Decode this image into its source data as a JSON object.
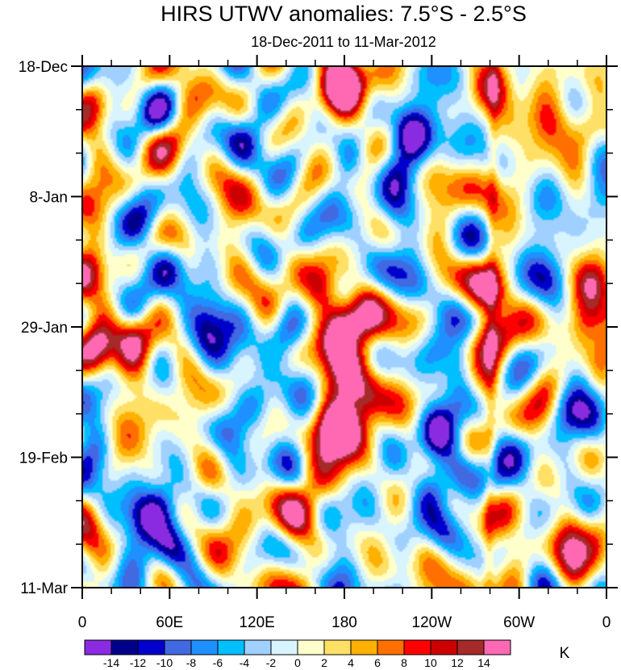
{
  "chart_data": {
    "type": "heatmap",
    "title": "HIRS UTWV anomalies: 7.5°S - 2.5°S",
    "subtitle": "18-Dec-2011 to 11-Mar-2012",
    "xlabel": "",
    "ylabel": "",
    "x_ticks": [
      "0",
      "60E",
      "120E",
      "180",
      "120W",
      "60W",
      "0"
    ],
    "x_tick_longitudes": [
      0,
      60,
      120,
      180,
      240,
      300,
      360
    ],
    "y_ticks": [
      "18-Dec",
      "8-Jan",
      "29-Jan",
      "19-Feb",
      "11-Mar"
    ],
    "y_tick_days": [
      0,
      21,
      42,
      63,
      84
    ],
    "xlim": [
      0,
      360
    ],
    "ylim_days": [
      0,
      84
    ],
    "colorbar": {
      "unit": "K",
      "levels": [
        -14,
        -12,
        -10,
        -8,
        -6,
        -4,
        -2,
        0,
        2,
        4,
        6,
        8,
        10,
        12,
        14
      ],
      "labels": [
        "-14",
        "-12",
        "-10",
        "-8",
        "-6",
        "-4",
        "-2",
        "0",
        "2",
        "4",
        "6",
        "8",
        "10",
        "12",
        "14"
      ],
      "colors": [
        "#8a2be2",
        "#00008b",
        "#0000cd",
        "#4169e1",
        "#1e90ff",
        "#00bfff",
        "#a0d0ff",
        "#d8f4ff",
        "#ffffcc",
        "#ffe066",
        "#ffb000",
        "#ff7000",
        "#ff0000",
        "#cd0000",
        "#a52a2a",
        "#ff69b4"
      ]
    },
    "features": [
      {
        "lon": 176,
        "day": 2,
        "value": 16
      },
      {
        "lon": 182,
        "day": 4,
        "value": 12
      },
      {
        "lon": 6,
        "day": 15,
        "value": 9
      },
      {
        "lon": 4,
        "day": 33,
        "value": 9
      },
      {
        "lon": 10,
        "day": 46,
        "value": 11
      },
      {
        "lon": 36,
        "day": 44,
        "value": 12
      },
      {
        "lon": 180,
        "day": 41,
        "value": 16
      },
      {
        "lon": 165,
        "day": 36,
        "value": 13
      },
      {
        "lon": 195,
        "day": 40,
        "value": 12
      },
      {
        "lon": 172,
        "day": 45,
        "value": 10
      },
      {
        "lon": 195,
        "day": 53,
        "value": 13
      },
      {
        "lon": 170,
        "day": 58,
        "value": 13
      },
      {
        "lon": 180,
        "day": 59,
        "value": 15
      },
      {
        "lon": 186,
        "day": 49,
        "value": 9
      },
      {
        "lon": 281,
        "day": 4,
        "value": 10
      },
      {
        "lon": 280,
        "day": 20,
        "value": 6
      },
      {
        "lon": 279,
        "day": 36,
        "value": 11
      },
      {
        "lon": 281,
        "day": 44,
        "value": 14
      },
      {
        "lon": 276,
        "day": 52,
        "value": 7
      },
      {
        "lon": 336,
        "day": 74,
        "value": 14
      },
      {
        "lon": 330,
        "day": 78,
        "value": 9
      },
      {
        "lon": 345,
        "day": 42,
        "value": 10
      },
      {
        "lon": 355,
        "day": 40,
        "value": 8
      },
      {
        "lon": 350,
        "day": 35,
        "value": 8
      },
      {
        "lon": 8,
        "day": 5,
        "value": 9
      },
      {
        "lon": 10,
        "day": 45,
        "value": 8
      },
      {
        "lon": 60,
        "day": 20,
        "value": 6
      },
      {
        "lon": 70,
        "day": 28,
        "value": 5
      },
      {
        "lon": 90,
        "day": 74,
        "value": 7
      },
      {
        "lon": 160,
        "day": 68,
        "value": 8
      },
      {
        "lon": 150,
        "day": 72,
        "value": 7
      },
      {
        "lon": 320,
        "day": 9,
        "value": 6
      },
      {
        "lon": 348,
        "day": 10,
        "value": 6
      },
      {
        "lon": 240,
        "day": 82,
        "value": 5
      },
      {
        "lon": 300,
        "day": 80,
        "value": 5
      },
      {
        "lon": 90,
        "day": 5,
        "value": 4
      },
      {
        "lon": 222,
        "day": 10,
        "value": -13
      },
      {
        "lon": 230,
        "day": 12,
        "value": -10
      },
      {
        "lon": 90,
        "day": 40,
        "value": -12
      },
      {
        "lon": 82,
        "day": 44,
        "value": -9
      },
      {
        "lon": 40,
        "day": 73,
        "value": -12
      },
      {
        "lon": 60,
        "day": 78,
        "value": -10
      },
      {
        "lon": 55,
        "day": 70,
        "value": -9
      },
      {
        "lon": 247,
        "day": 75,
        "value": -12
      },
      {
        "lon": 240,
        "day": 68,
        "value": -10
      },
      {
        "lon": 260,
        "day": 48,
        "value": -11
      },
      {
        "lon": 244,
        "day": 59,
        "value": -10
      },
      {
        "lon": 262,
        "day": 65,
        "value": -9
      },
      {
        "lon": 185,
        "day": 15,
        "value": -8
      },
      {
        "lon": 215,
        "day": 24,
        "value": -9
      },
      {
        "lon": 150,
        "day": 28,
        "value": -6
      },
      {
        "lon": 140,
        "day": 43,
        "value": -9
      },
      {
        "lon": 40,
        "day": 25,
        "value": -9
      },
      {
        "lon": 60,
        "day": 32,
        "value": -8
      },
      {
        "lon": 30,
        "day": 5,
        "value": -7
      },
      {
        "lon": 50,
        "day": 8,
        "value": -8
      },
      {
        "lon": 330,
        "day": 55,
        "value": -9
      },
      {
        "lon": 335,
        "day": 65,
        "value": -10
      },
      {
        "lon": 345,
        "day": 50,
        "value": -8
      },
      {
        "lon": 352,
        "day": 14,
        "value": -7
      },
      {
        "lon": 300,
        "day": 62,
        "value": -6
      },
      {
        "lon": 10,
        "day": 62,
        "value": -7
      },
      {
        "lon": 120,
        "day": 55,
        "value": -6
      },
      {
        "lon": 110,
        "day": 12,
        "value": -5
      },
      {
        "lon": 255,
        "day": 30,
        "value": -6
      },
      {
        "lon": 320,
        "day": 28,
        "value": -5
      },
      {
        "lon": 230,
        "day": 36,
        "value": -7
      },
      {
        "lon": 100,
        "day": 65,
        "value": -5
      }
    ]
  }
}
